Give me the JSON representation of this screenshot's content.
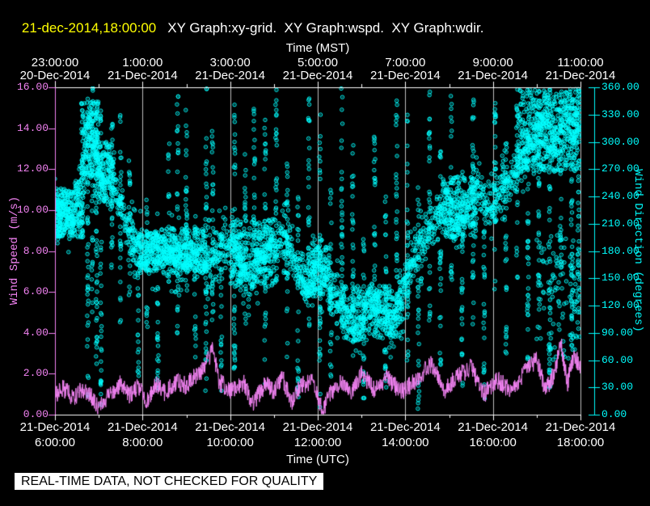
{
  "header": {
    "timestamp": "21-dec-2014,18:00:00",
    "traces": "XY Graph:xy-grid.  XY Graph:wspd.  XY Graph:wdir."
  },
  "footer": {
    "notice": "REAL-TIME DATA, NOT CHECKED FOR QUALITY"
  },
  "colors": {
    "background": "#000000",
    "timestamp": "#ffff00",
    "white": "#ffffff",
    "wspd": "#f383f3",
    "wdir": "#00ffff",
    "grid": "#bdbdbd"
  },
  "chart_data": {
    "type": "scatter",
    "description": "Wind speed (magenta line, left axis) and wind direction (cyan open-circle scatter, right axis) versus time, 6:00-18:00 UTC 21-Dec-2014",
    "top_axis": {
      "title": "Time (MST)",
      "ticks": [
        {
          "time": "23:00:00",
          "date": "20-Dec-2014"
        },
        {
          "time": "1:00:00",
          "date": "21-Dec-2014"
        },
        {
          "time": "3:00:00",
          "date": "21-Dec-2014"
        },
        {
          "time": "5:00:00",
          "date": "21-Dec-2014"
        },
        {
          "time": "7:00:00",
          "date": "21-Dec-2014"
        },
        {
          "time": "9:00:00",
          "date": "21-Dec-2014"
        },
        {
          "time": "11:00:00",
          "date": "21-Dec-2014"
        }
      ]
    },
    "bottom_axis": {
      "title": "Time (UTC)",
      "ticks": [
        {
          "date": "21-Dec-2014",
          "time": "6:00:00"
        },
        {
          "date": "21-Dec-2014",
          "time": "8:00:00"
        },
        {
          "date": "21-Dec-2014",
          "time": "10:00:00"
        },
        {
          "date": "21-Dec-2014",
          "time": "12:00:00"
        },
        {
          "date": "21-Dec-2014",
          "time": "14:00:00"
        },
        {
          "date": "21-Dec-2014",
          "time": "16:00:00"
        },
        {
          "date": "21-Dec-2014",
          "time": "18:00:00"
        }
      ],
      "hour_min": 6,
      "hour_max": 18,
      "major_step_hours": 2,
      "minor_step_hours": 1
    },
    "left_axis": {
      "label": "Wind Speed (m/s)",
      "min": 0,
      "max": 16,
      "tick_step": 2,
      "tick_labels": [
        "16.00",
        "14.00",
        "12.00",
        "10.00",
        "8.00",
        "6.00",
        "4.00",
        "2.00",
        "0.00"
      ],
      "color": "#f383f3"
    },
    "right_axis": {
      "label": "Wind Direction (degrees)",
      "min": 0,
      "max": 360,
      "tick_step": 30,
      "tick_labels": [
        "360.00",
        "330.00",
        "300.00",
        "270.00",
        "240.00",
        "210.00",
        "180.00",
        "150.00",
        "120.00",
        "90.00",
        "60.00",
        "30.00",
        "0.00"
      ],
      "color": "#00ffff"
    },
    "grid": {
      "vertical_at_hours": [
        8,
        10,
        12,
        14,
        16,
        18
      ],
      "horizontal": false,
      "color": "#bdbdbd"
    },
    "series": [
      {
        "name": "wdir",
        "type": "scatter",
        "marker": "open-circle",
        "color": "#00ffff",
        "band_anchors": [
          [
            6.0,
            215
          ],
          [
            6.2,
            225
          ],
          [
            6.35,
            210
          ],
          [
            6.5,
            240
          ],
          [
            6.65,
            275
          ],
          [
            6.8,
            320
          ],
          [
            6.95,
            290
          ],
          [
            7.1,
            250
          ],
          [
            7.25,
            270
          ],
          [
            7.4,
            240
          ],
          [
            7.55,
            225
          ],
          [
            7.7,
            195
          ],
          [
            7.9,
            180
          ],
          [
            8.2,
            175
          ],
          [
            8.5,
            182
          ],
          [
            8.8,
            172
          ],
          [
            9.1,
            180
          ],
          [
            9.4,
            168
          ],
          [
            9.7,
            178
          ],
          [
            10.0,
            192
          ],
          [
            10.2,
            170
          ],
          [
            10.45,
            152
          ],
          [
            10.7,
            168
          ],
          [
            10.95,
            188
          ],
          [
            11.2,
            200
          ],
          [
            11.45,
            172
          ],
          [
            11.7,
            140
          ],
          [
            11.95,
            165
          ],
          [
            12.2,
            150
          ],
          [
            12.45,
            128
          ],
          [
            12.7,
            105
          ],
          [
            12.95,
            92
          ],
          [
            13.2,
            128
          ],
          [
            13.45,
            112
          ],
          [
            13.7,
            98
          ],
          [
            13.95,
            140
          ],
          [
            14.2,
            175
          ],
          [
            14.45,
            195
          ],
          [
            14.7,
            215
          ],
          [
            14.95,
            238
          ],
          [
            15.2,
            205
          ],
          [
            15.45,
            228
          ],
          [
            15.7,
            252
          ],
          [
            15.95,
            225
          ],
          [
            16.2,
            248
          ],
          [
            16.45,
            262
          ],
          [
            16.7,
            288
          ],
          [
            16.95,
            310
          ],
          [
            17.2,
            325
          ],
          [
            17.45,
            305
          ],
          [
            17.7,
            330
          ],
          [
            18.0,
            318
          ]
        ],
        "band_spread_deg": 22,
        "band_points": 1900,
        "clusters": [
          [
            6.0,
            6.65,
            195,
            250,
            240
          ],
          [
            6.6,
            7.0,
            255,
            345,
            150
          ],
          [
            6.9,
            7.35,
            230,
            300,
            120
          ],
          [
            7.9,
            9.45,
            158,
            205,
            320
          ],
          [
            10.0,
            11.05,
            140,
            215,
            230
          ],
          [
            11.6,
            12.3,
            130,
            185,
            140
          ],
          [
            12.55,
            13.95,
            82,
            142,
            240
          ],
          [
            14.85,
            15.65,
            195,
            262,
            180
          ],
          [
            16.55,
            18.0,
            268,
            358,
            430
          ],
          [
            17.0,
            18.0,
            60,
            200,
            120
          ]
        ],
        "streaks": [
          [
            6.75,
            15,
            360
          ],
          [
            6.85,
            110,
            360
          ],
          [
            6.95,
            55,
            350
          ],
          [
            7.05,
            10,
            345
          ],
          [
            7.3,
            150,
            330
          ],
          [
            7.5,
            95,
            330
          ],
          [
            7.7,
            130,
            280
          ],
          [
            7.9,
            35,
            205
          ],
          [
            8.1,
            95,
            255
          ],
          [
            8.35,
            25,
            185
          ],
          [
            8.6,
            125,
            300
          ],
          [
            8.8,
            85,
            350
          ],
          [
            9.0,
            145,
            350
          ],
          [
            9.2,
            60,
            220
          ],
          [
            9.45,
            5,
            360
          ],
          [
            9.6,
            95,
            340
          ],
          [
            9.8,
            15,
            200
          ],
          [
            10.1,
            45,
            355
          ],
          [
            10.35,
            95,
            300
          ],
          [
            10.55,
            145,
            355
          ],
          [
            10.8,
            25,
            330
          ],
          [
            11.05,
            145,
            360
          ],
          [
            11.3,
            55,
            300
          ],
          [
            11.55,
            10,
            250
          ],
          [
            11.8,
            95,
            355
          ],
          [
            12.05,
            3,
            330
          ],
          [
            12.3,
            40,
            250
          ],
          [
            12.55,
            145,
            360
          ],
          [
            12.8,
            55,
            300
          ],
          [
            13.05,
            10,
            200
          ],
          [
            13.3,
            95,
            340
          ],
          [
            13.55,
            25,
            260
          ],
          [
            13.8,
            145,
            360
          ],
          [
            14.05,
            55,
            330
          ],
          [
            14.3,
            5,
            250
          ],
          [
            14.55,
            95,
            360
          ],
          [
            14.8,
            40,
            300
          ],
          [
            15.05,
            145,
            355
          ],
          [
            15.3,
            25,
            270
          ],
          [
            15.55,
            95,
            360
          ],
          [
            15.8,
            10,
            230
          ],
          [
            16.05,
            115,
            350
          ],
          [
            16.3,
            45,
            300
          ],
          [
            16.55,
            150,
            360
          ],
          [
            16.8,
            55,
            330
          ],
          [
            17.05,
            95,
            360
          ],
          [
            17.3,
            25,
            280
          ],
          [
            17.55,
            145,
            360
          ],
          [
            17.8,
            55,
            350
          ],
          [
            17.95,
            90,
            360
          ]
        ]
      },
      {
        "name": "wspd",
        "type": "line",
        "color": "#f383f3",
        "anchors": [
          [
            6.0,
            1.0
          ],
          [
            6.2,
            1.3
          ],
          [
            6.4,
            0.8
          ],
          [
            6.6,
            1.2
          ],
          [
            6.8,
            1.0
          ],
          [
            7.0,
            0.25
          ],
          [
            7.2,
            0.9
          ],
          [
            7.5,
            1.5
          ],
          [
            7.7,
            0.9
          ],
          [
            7.9,
            1.4
          ],
          [
            8.1,
            0.6
          ],
          [
            8.3,
            1.5
          ],
          [
            8.5,
            1.1
          ],
          [
            8.8,
            1.6
          ],
          [
            9.0,
            1.4
          ],
          [
            9.2,
            1.9
          ],
          [
            9.4,
            2.2
          ],
          [
            9.6,
            3.2
          ],
          [
            9.75,
            1.6
          ],
          [
            10.0,
            1.2
          ],
          [
            10.3,
            1.6
          ],
          [
            10.5,
            0.5
          ],
          [
            10.8,
            1.5
          ],
          [
            11.0,
            1.1
          ],
          [
            11.2,
            1.8
          ],
          [
            11.4,
            0.6
          ],
          [
            11.6,
            1.4
          ],
          [
            11.9,
            1.7
          ],
          [
            12.1,
            0.15
          ],
          [
            12.3,
            1.1
          ],
          [
            12.5,
            1.6
          ],
          [
            12.8,
            1.1
          ],
          [
            13.0,
            2.0
          ],
          [
            13.3,
            1.2
          ],
          [
            13.6,
            1.8
          ],
          [
            13.9,
            1.1
          ],
          [
            14.2,
            1.6
          ],
          [
            14.6,
            2.5
          ],
          [
            14.9,
            1.2
          ],
          [
            15.2,
            1.9
          ],
          [
            15.5,
            2.3
          ],
          [
            15.8,
            1.0
          ],
          [
            16.1,
            1.7
          ],
          [
            16.4,
            1.2
          ],
          [
            16.7,
            2.0
          ],
          [
            17.0,
            2.7
          ],
          [
            17.2,
            1.2
          ],
          [
            17.4,
            2.0
          ],
          [
            17.55,
            3.6
          ],
          [
            17.7,
            1.5
          ],
          [
            17.85,
            3.0
          ],
          [
            18.0,
            2.3
          ]
        ],
        "noise_amplitude": 0.45,
        "samples": 1560
      }
    ]
  }
}
